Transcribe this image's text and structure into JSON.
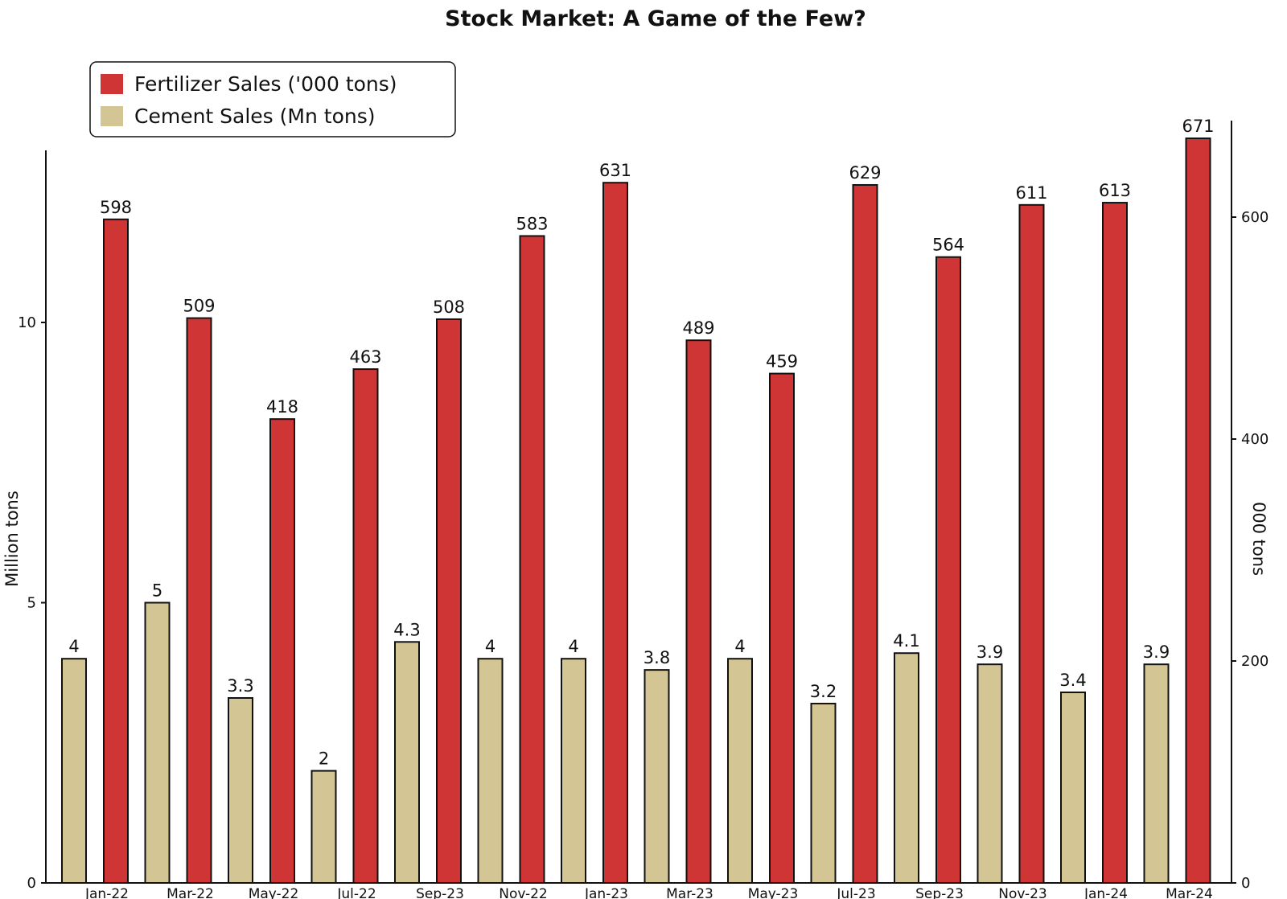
{
  "chart_data": {
    "type": "bar",
    "title": "Stock Market: A Game of the Few?",
    "ylabel_left": "Million tons",
    "ylabel_right": "000 tons",
    "categories": [
      "Jan-22",
      "Mar-22",
      "May-22",
      "Jul-22",
      "Sep-23",
      "Nov-22",
      "Jan-23",
      "Mar-23",
      "May-23",
      "Jul-23",
      "Sep-23",
      "Nov-23",
      "Jan-24",
      "Mar-24"
    ],
    "ylim_left": [
      0,
      13
    ],
    "ylim_right": [
      0,
      671
    ],
    "yticks_left": [
      0,
      5,
      10
    ],
    "yticks_right": [
      0,
      200,
      400,
      600
    ],
    "series": [
      {
        "name": "Fertilizer Sales ('000 tons)",
        "axis": "right",
        "color": "#d03535",
        "values": [
          598,
          509,
          418,
          463,
          508,
          583,
          631,
          489,
          459,
          629,
          564,
          611,
          613,
          671
        ],
        "labels": [
          "598",
          "509",
          "418",
          "463",
          "508",
          "583",
          "631",
          "489",
          "459",
          "629",
          "564",
          "611",
          "613",
          "671"
        ]
      },
      {
        "name": "Cement Sales (Mn tons)",
        "axis": "left",
        "color": "#d3c594",
        "values": [
          4,
          5,
          3.3,
          2,
          4.3,
          4,
          4,
          3.8,
          4,
          3.2,
          4.1,
          3.9,
          3.4,
          3.9
        ],
        "labels": [
          "4",
          "5",
          "3.3",
          "2",
          "4.3",
          "4",
          "4",
          "3.8",
          "4",
          "3.2",
          "4.1",
          "3.9",
          "3.4",
          "3.9"
        ]
      }
    ],
    "legend_position": "top-left",
    "grid": false
  }
}
